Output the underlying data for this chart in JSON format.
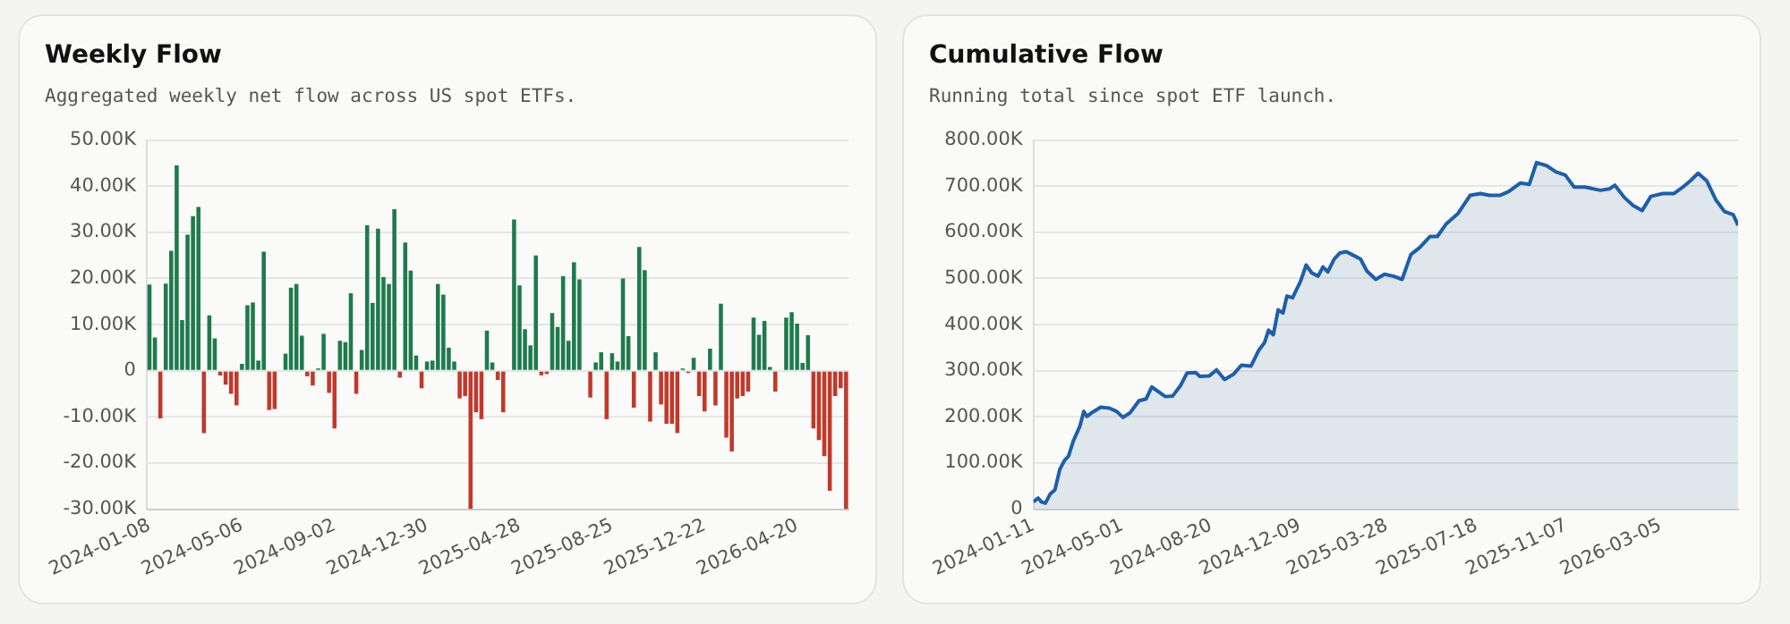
{
  "chart_data": [
    {
      "type": "bar",
      "title": "Weekly Flow",
      "subtitle": "Aggregated weekly net flow across US spot ETFs.",
      "categories": [
        "2024-01-08",
        null,
        null,
        null,
        null,
        null,
        null,
        null,
        null,
        null,
        null,
        null,
        null,
        null,
        null,
        null,
        null,
        "2024-05-06",
        null,
        null,
        null,
        null,
        null,
        null,
        null,
        null,
        null,
        null,
        null,
        null,
        null,
        null,
        null,
        null,
        "2024-09-02",
        null,
        null,
        null,
        null,
        null,
        null,
        null,
        null,
        null,
        null,
        null,
        null,
        null,
        null,
        null,
        null,
        "2024-12-30",
        null,
        null,
        null,
        null,
        null,
        null,
        null,
        null,
        null,
        null,
        null,
        null,
        null,
        null,
        null,
        null,
        "2025-04-28",
        null,
        null,
        null,
        null,
        null,
        null,
        null,
        null,
        null,
        null,
        null,
        null,
        null,
        null,
        null,
        null,
        "2025-08-25",
        null,
        null,
        null,
        null,
        null,
        null,
        null,
        null,
        null,
        null,
        null,
        null,
        null,
        null,
        null,
        null,
        "2025-12-22",
        null,
        null,
        null,
        null,
        null,
        null,
        null,
        null,
        null,
        null,
        null,
        null,
        null,
        null,
        null,
        null,
        "2026-04-20",
        null,
        null,
        null,
        null,
        null,
        null,
        null,
        null,
        null
      ],
      "values": [
        18700,
        7200,
        -10300,
        18900,
        26000,
        44500,
        11000,
        29500,
        33500,
        35500,
        -13500,
        12000,
        7000,
        -1000,
        -3000,
        -5000,
        -7500,
        1500,
        14200,
        14800,
        2200,
        25800,
        -8500,
        -8300,
        null,
        3700,
        18000,
        18800,
        7600,
        -1200,
        -3200,
        500,
        8000,
        -4800,
        -12500,
        6500,
        6200,
        16800,
        -5000,
        4500,
        31500,
        14700,
        30800,
        20300,
        18800,
        35000,
        -1500,
        27800,
        21700,
        3300,
        -3800,
        2000,
        2200,
        18800,
        16500,
        5000,
        2000,
        -6000,
        -5500,
        -30000,
        -9000,
        -10500,
        8700,
        1800,
        -2000,
        -9000,
        0,
        32800,
        18500,
        9000,
        5500,
        25000,
        -1000,
        -700,
        12500,
        9500,
        20500,
        6500,
        23500,
        19800,
        null,
        -5800,
        1800,
        4000,
        -10500,
        3800,
        2000,
        20000,
        7500,
        -8000,
        26800,
        21800,
        -11000,
        4000,
        -7300,
        -11500,
        -11500,
        -13500,
        500,
        -500,
        2800,
        -5500,
        -8800,
        4800,
        -7500,
        14500,
        -14500,
        -17500,
        -6000,
        -5500,
        -4500,
        11500,
        7800,
        10800,
        800,
        -4500,
        0,
        11500,
        12700,
        10200,
        1700,
        7700,
        -12500,
        -15000,
        -18500,
        -26000,
        -5500,
        -3800,
        -30000
      ],
      "colors": [
        "#1f7a4d",
        "#1f7a4d",
        "#c0392b",
        "#1f7a4d",
        "#1f7a4d",
        "#1f7a4d",
        "#1f7a4d",
        "#1f7a4d",
        "#1f7a4d",
        "#1f7a4d",
        "#c0392b",
        "#1f7a4d",
        "#1f7a4d",
        "#c0392b",
        "#c0392b",
        "#c0392b",
        "#c0392b",
        "#1f7a4d",
        "#1f7a4d",
        "#1f7a4d",
        "#1f7a4d",
        "#1f7a4d",
        "#c0392b",
        "#c0392b",
        "#c0392b",
        "#1f7a4d",
        "#1f7a4d",
        "#1f7a4d",
        "#1f7a4d",
        "#c0392b",
        "#c0392b",
        "#1f7a4d",
        "#1f7a4d",
        "#c0392b",
        "#c0392b",
        "#1f7a4d",
        "#1f7a4d",
        "#1f7a4d",
        "#c0392b",
        "#1f7a4d",
        "#1f7a4d",
        "#1f7a4d",
        "#1f7a4d",
        "#1f7a4d",
        "#1f7a4d",
        "#1f7a4d",
        "#c0392b",
        "#1f7a4d",
        "#1f7a4d",
        "#1f7a4d",
        "#c0392b",
        "#1f7a4d",
        "#1f7a4d",
        "#1f7a4d",
        "#1f7a4d",
        "#1f7a4d",
        "#1f7a4d",
        "#c0392b",
        "#c0392b",
        "#c0392b",
        "#c0392b",
        "#c0392b",
        "#1f7a4d",
        "#1f7a4d",
        "#c0392b",
        "#c0392b",
        "#1f7a4d",
        "#1f7a4d",
        "#1f7a4d",
        "#1f7a4d",
        "#1f7a4d",
        "#1f7a4d",
        "#c0392b",
        "#c0392b",
        "#1f7a4d",
        "#1f7a4d",
        "#1f7a4d",
        "#1f7a4d",
        "#1f7a4d",
        "#1f7a4d",
        "#1f7a4d",
        "#c0392b",
        "#1f7a4d",
        "#1f7a4d",
        "#c0392b",
        "#1f7a4d",
        "#1f7a4d",
        "#1f7a4d",
        "#1f7a4d",
        "#c0392b",
        "#1f7a4d",
        "#1f7a4d",
        "#c0392b",
        "#1f7a4d",
        "#c0392b",
        "#c0392b",
        "#c0392b",
        "#c0392b",
        "#1f7a4d",
        "#c0392b",
        "#1f7a4d",
        "#c0392b",
        "#c0392b",
        "#1f7a4d",
        "#c0392b",
        "#1f7a4d",
        "#c0392b",
        "#c0392b",
        "#c0392b",
        "#c0392b",
        "#c0392b",
        "#1f7a4d",
        "#1f7a4d",
        "#1f7a4d",
        "#1f7a4d",
        "#c0392b",
        "#1f7a4d",
        "#1f7a4d",
        "#1f7a4d",
        "#1f7a4d",
        "#1f7a4d",
        "#1f7a4d",
        "#c0392b",
        "#c0392b",
        "#c0392b",
        "#c0392b",
        "#c0392b",
        "#c0392b",
        "#c0392b"
      ],
      "ylim": [
        -30000,
        50000
      ],
      "yticks": [
        {
          "value": -30000,
          "label": "-30.00K"
        },
        {
          "value": -20000,
          "label": "-20.00K"
        },
        {
          "value": -10000,
          "label": "-10.00K"
        },
        0,
        {
          "value": 10000,
          "label": "10.00K"
        },
        {
          "value": 20000,
          "label": "20.00K"
        },
        {
          "value": 30000,
          "label": "30.00K"
        },
        {
          "value": 40000,
          "label": "40.00K"
        },
        {
          "value": 50000,
          "label": "50.00K"
        }
      ],
      "grid": "y"
    },
    {
      "type": "area",
      "title": "Cumulative Flow",
      "subtitle": "Running total since spot ETF launch.",
      "x": [
        "2024-01-11",
        "2024-01-17",
        "2024-01-21",
        "2024-01-26",
        "2024-02-01",
        "2024-02-07",
        "2024-02-13",
        "2024-02-19",
        "2024-02-24",
        "2024-03-01",
        "2024-03-09",
        "2024-03-14",
        "2024-03-18",
        "2024-03-24",
        "2024-04-04",
        "2024-04-15",
        "2024-04-24",
        "2024-05-02",
        "2024-05-11",
        "2024-05-22",
        "2024-05-31",
        "2024-06-07",
        "2024-06-15",
        "2024-06-24",
        "2024-07-03",
        "2024-07-13",
        "2024-07-21",
        "2024-08-01",
        "2024-08-06",
        "2024-08-18",
        "2024-08-27",
        "2024-09-06",
        "2024-09-17",
        "2024-09-27",
        "2024-10-09",
        "2024-10-19",
        "2024-10-26",
        "2024-10-31",
        "2024-11-06",
        "2024-11-12",
        "2024-11-18",
        "2024-11-23",
        "2024-11-30",
        "2024-12-10",
        "2024-12-17",
        "2024-12-24",
        "2025-01-01",
        "2025-01-07",
        "2025-01-13",
        "2025-01-21",
        "2025-01-28",
        "2025-02-05",
        "2025-02-12",
        "2025-02-23",
        "2025-03-03",
        "2025-03-14",
        "2025-03-25",
        "2025-04-05",
        "2025-04-16",
        "2025-04-27",
        "2025-05-08",
        "2025-05-21",
        "2025-05-30",
        "2025-06-10",
        "2025-06-25",
        "2025-07-10",
        "2025-07-23",
        "2025-08-03",
        "2025-08-16",
        "2025-08-27",
        "2025-09-11",
        "2025-09-22",
        "2025-10-01",
        "2025-10-14",
        "2025-10-25",
        "2025-11-06",
        "2025-11-17",
        "2025-12-01",
        "2025-12-20",
        "2025-12-31",
        "2026-01-07",
        "2026-01-19",
        "2026-01-30",
        "2026-02-10",
        "2026-02-21",
        "2026-03-08",
        "2026-03-22",
        "2026-04-02",
        "2026-04-11",
        "2026-04-21",
        "2026-05-02",
        "2026-05-13",
        "2026-05-24",
        "2026-06-04",
        "2026-06-10"
      ],
      "values": [
        16000,
        24000,
        16000,
        13000,
        33000,
        42000,
        86000,
        106000,
        115000,
        148000,
        179000,
        212000,
        201000,
        209000,
        221000,
        219000,
        212000,
        199000,
        209000,
        235000,
        239000,
        265000,
        255000,
        244000,
        245000,
        268000,
        295000,
        296000,
        288000,
        289000,
        302000,
        281000,
        292000,
        312000,
        310000,
        345000,
        361000,
        388000,
        378000,
        432000,
        425000,
        462000,
        458000,
        494000,
        529000,
        512000,
        505000,
        525000,
        514000,
        542000,
        555000,
        558000,
        552000,
        542000,
        516000,
        498000,
        509000,
        505000,
        498000,
        552000,
        567000,
        591000,
        591000,
        618000,
        641000,
        680000,
        684000,
        680000,
        680000,
        688000,
        707000,
        704000,
        751000,
        744000,
        731000,
        724000,
        698000,
        698000,
        691000,
        694000,
        702000,
        675000,
        658000,
        647000,
        678000,
        684000,
        684000,
        698000,
        711000,
        728000,
        711000,
        671000,
        645000,
        638000,
        615000
      ],
      "color": "#1f5fa8",
      "xlim": [
        "2024-01-11",
        "2026-06-10"
      ],
      "xticks": [
        "2024-01-11",
        "2024-05-01",
        "2024-08-20",
        "2024-12-09",
        "2025-03-28",
        "2025-07-18",
        "2025-11-07",
        "2026-03-05"
      ],
      "ylim": [
        0,
        800000
      ],
      "yticks": [
        0,
        {
          "value": 100000,
          "label": "100.00K"
        },
        {
          "value": 200000,
          "label": "200.00K"
        },
        {
          "value": 300000,
          "label": "300.00K"
        },
        {
          "value": 400000,
          "label": "400.00K"
        },
        {
          "value": 500000,
          "label": "500.00K"
        },
        {
          "value": 600000,
          "label": "600.00K"
        },
        {
          "value": 700000,
          "label": "700.00K"
        },
        {
          "value": 800000,
          "label": "800.00K"
        }
      ],
      "grid": "y",
      "marker": "none"
    }
  ]
}
